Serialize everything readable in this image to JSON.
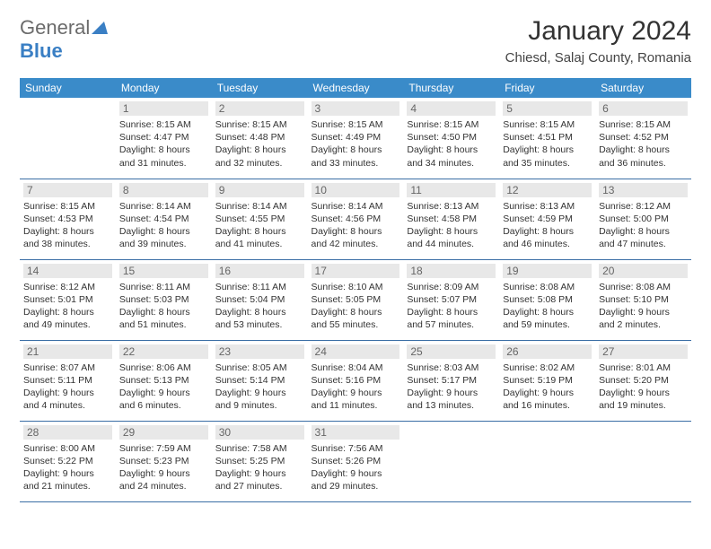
{
  "brand": {
    "part1": "General",
    "part2": "Blue"
  },
  "title": "January 2024",
  "location": "Chiesd, Salaj County, Romania",
  "colors": {
    "header_bg": "#3a8bc9",
    "header_fg": "#ffffff",
    "row_border": "#3a6ea5",
    "daynum_bg": "#e8e8e8",
    "daynum_fg": "#666666",
    "brand_blue": "#3a7fc4",
    "brand_gray": "#6b6b6b",
    "text": "#333333",
    "bg": "#ffffff"
  },
  "day_headers": [
    "Sunday",
    "Monday",
    "Tuesday",
    "Wednesday",
    "Thursday",
    "Friday",
    "Saturday"
  ],
  "weeks": [
    [
      null,
      {
        "n": "1",
        "sr": "8:15 AM",
        "ss": "4:47 PM",
        "dl": "8 hours and 31 minutes."
      },
      {
        "n": "2",
        "sr": "8:15 AM",
        "ss": "4:48 PM",
        "dl": "8 hours and 32 minutes."
      },
      {
        "n": "3",
        "sr": "8:15 AM",
        "ss": "4:49 PM",
        "dl": "8 hours and 33 minutes."
      },
      {
        "n": "4",
        "sr": "8:15 AM",
        "ss": "4:50 PM",
        "dl": "8 hours and 34 minutes."
      },
      {
        "n": "5",
        "sr": "8:15 AM",
        "ss": "4:51 PM",
        "dl": "8 hours and 35 minutes."
      },
      {
        "n": "6",
        "sr": "8:15 AM",
        "ss": "4:52 PM",
        "dl": "8 hours and 36 minutes."
      }
    ],
    [
      {
        "n": "7",
        "sr": "8:15 AM",
        "ss": "4:53 PM",
        "dl": "8 hours and 38 minutes."
      },
      {
        "n": "8",
        "sr": "8:14 AM",
        "ss": "4:54 PM",
        "dl": "8 hours and 39 minutes."
      },
      {
        "n": "9",
        "sr": "8:14 AM",
        "ss": "4:55 PM",
        "dl": "8 hours and 41 minutes."
      },
      {
        "n": "10",
        "sr": "8:14 AM",
        "ss": "4:56 PM",
        "dl": "8 hours and 42 minutes."
      },
      {
        "n": "11",
        "sr": "8:13 AM",
        "ss": "4:58 PM",
        "dl": "8 hours and 44 minutes."
      },
      {
        "n": "12",
        "sr": "8:13 AM",
        "ss": "4:59 PM",
        "dl": "8 hours and 46 minutes."
      },
      {
        "n": "13",
        "sr": "8:12 AM",
        "ss": "5:00 PM",
        "dl": "8 hours and 47 minutes."
      }
    ],
    [
      {
        "n": "14",
        "sr": "8:12 AM",
        "ss": "5:01 PM",
        "dl": "8 hours and 49 minutes."
      },
      {
        "n": "15",
        "sr": "8:11 AM",
        "ss": "5:03 PM",
        "dl": "8 hours and 51 minutes."
      },
      {
        "n": "16",
        "sr": "8:11 AM",
        "ss": "5:04 PM",
        "dl": "8 hours and 53 minutes."
      },
      {
        "n": "17",
        "sr": "8:10 AM",
        "ss": "5:05 PM",
        "dl": "8 hours and 55 minutes."
      },
      {
        "n": "18",
        "sr": "8:09 AM",
        "ss": "5:07 PM",
        "dl": "8 hours and 57 minutes."
      },
      {
        "n": "19",
        "sr": "8:08 AM",
        "ss": "5:08 PM",
        "dl": "8 hours and 59 minutes."
      },
      {
        "n": "20",
        "sr": "8:08 AM",
        "ss": "5:10 PM",
        "dl": "9 hours and 2 minutes."
      }
    ],
    [
      {
        "n": "21",
        "sr": "8:07 AM",
        "ss": "5:11 PM",
        "dl": "9 hours and 4 minutes."
      },
      {
        "n": "22",
        "sr": "8:06 AM",
        "ss": "5:13 PM",
        "dl": "9 hours and 6 minutes."
      },
      {
        "n": "23",
        "sr": "8:05 AM",
        "ss": "5:14 PM",
        "dl": "9 hours and 9 minutes."
      },
      {
        "n": "24",
        "sr": "8:04 AM",
        "ss": "5:16 PM",
        "dl": "9 hours and 11 minutes."
      },
      {
        "n": "25",
        "sr": "8:03 AM",
        "ss": "5:17 PM",
        "dl": "9 hours and 13 minutes."
      },
      {
        "n": "26",
        "sr": "8:02 AM",
        "ss": "5:19 PM",
        "dl": "9 hours and 16 minutes."
      },
      {
        "n": "27",
        "sr": "8:01 AM",
        "ss": "5:20 PM",
        "dl": "9 hours and 19 minutes."
      }
    ],
    [
      {
        "n": "28",
        "sr": "8:00 AM",
        "ss": "5:22 PM",
        "dl": "9 hours and 21 minutes."
      },
      {
        "n": "29",
        "sr": "7:59 AM",
        "ss": "5:23 PM",
        "dl": "9 hours and 24 minutes."
      },
      {
        "n": "30",
        "sr": "7:58 AM",
        "ss": "5:25 PM",
        "dl": "9 hours and 27 minutes."
      },
      {
        "n": "31",
        "sr": "7:56 AM",
        "ss": "5:26 PM",
        "dl": "9 hours and 29 minutes."
      },
      null,
      null,
      null
    ]
  ],
  "labels": {
    "sunrise": "Sunrise:",
    "sunset": "Sunset:",
    "daylight": "Daylight:"
  }
}
